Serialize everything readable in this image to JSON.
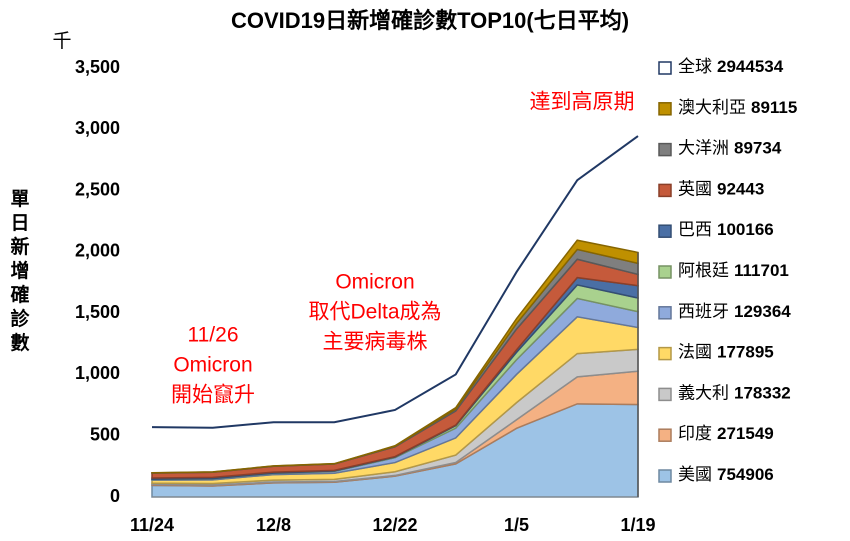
{
  "chart_data": {
    "type": "stacked_area",
    "title": "COVID19日新增確診數TOP10(七日平均)",
    "y_label": "單日新增確診數",
    "y_unit": "千",
    "categories": [
      "11/24",
      null,
      "12/8",
      null,
      "12/22",
      null,
      "1/5",
      null,
      "1/19"
    ],
    "ylim": [
      0,
      3500
    ],
    "yticks": [
      0,
      {
        "value": 500,
        "label": "500"
      },
      {
        "value": 1000,
        "label": "1,000"
      },
      {
        "value": 1500,
        "label": "1,500"
      },
      {
        "value": 2000,
        "label": "2,000"
      },
      {
        "value": 2500,
        "label": "2,500"
      },
      {
        "value": 3000,
        "label": "3,000"
      },
      {
        "value": 3500,
        "label": "3,500"
      }
    ],
    "series": [
      {
        "name": "美國",
        "latest": 754906,
        "color": "#9dc3e6",
        "values": [
          95,
          90,
          115,
          120,
          170,
          270,
          560,
          760,
          754.906
        ]
      },
      {
        "name": "印度",
        "latest": 271549,
        "color": "#f4b183",
        "values": [
          8,
          8,
          7,
          6,
          6,
          12,
          70,
          220,
          271.549
        ]
      },
      {
        "name": "義大利",
        "latest": 178332,
        "color": "#c9c9c9",
        "values": [
          10,
          12,
          16,
          18,
          30,
          60,
          140,
          190,
          178.332
        ]
      },
      {
        "name": "法國",
        "latest": 177895,
        "color": "#ffd966",
        "values": [
          25,
          30,
          45,
          50,
          75,
          140,
          230,
          300,
          177.895
        ]
      },
      {
        "name": "西班牙",
        "latest": 129364,
        "color": "#8faadc",
        "values": [
          5,
          8,
          10,
          15,
          40,
          80,
          120,
          150,
          129.364
        ]
      },
      {
        "name": "阿根廷",
        "latest": 111701,
        "color": "#a9d18e",
        "values": [
          2,
          2,
          2,
          3,
          5,
          20,
          60,
          110,
          111.701
        ]
      },
      {
        "name": "巴西",
        "latest": 100166,
        "color": "#4a6fa5",
        "values": [
          10,
          10,
          8,
          5,
          4,
          5,
          20,
          60,
          100.166
        ]
      },
      {
        "name": "英國",
        "latest": 92443,
        "color": "#c55a3b",
        "values": [
          40,
          42,
          48,
          52,
          80,
          115,
          170,
          150,
          92.443
        ]
      },
      {
        "name": "大洋洲",
        "latest": 89734,
        "color": "#7f7f7f",
        "values": [
          2,
          2,
          2,
          2,
          5,
          15,
          45,
          80,
          89.734
        ]
      },
      {
        "name": "澳大利亞",
        "latest": 89115,
        "color": "#bf9000",
        "values": [
          1,
          1,
          1,
          1,
          3,
          12,
          40,
          75,
          89.115
        ]
      }
    ],
    "total_line": {
      "name": "全球",
      "latest": 2944534,
      "color": "#203864",
      "values": [
        570,
        565,
        610,
        610,
        710,
        1000,
        1835,
        2585,
        2944.534
      ]
    },
    "annotations": [
      {
        "lines": [
          "達到高原期"
        ]
      },
      {
        "lines": [
          "Omicron",
          "取代Delta成為",
          "主要病毒株"
        ]
      },
      {
        "lines": [
          "11/26",
          "Omicron",
          "開始竄升"
        ]
      }
    ]
  }
}
